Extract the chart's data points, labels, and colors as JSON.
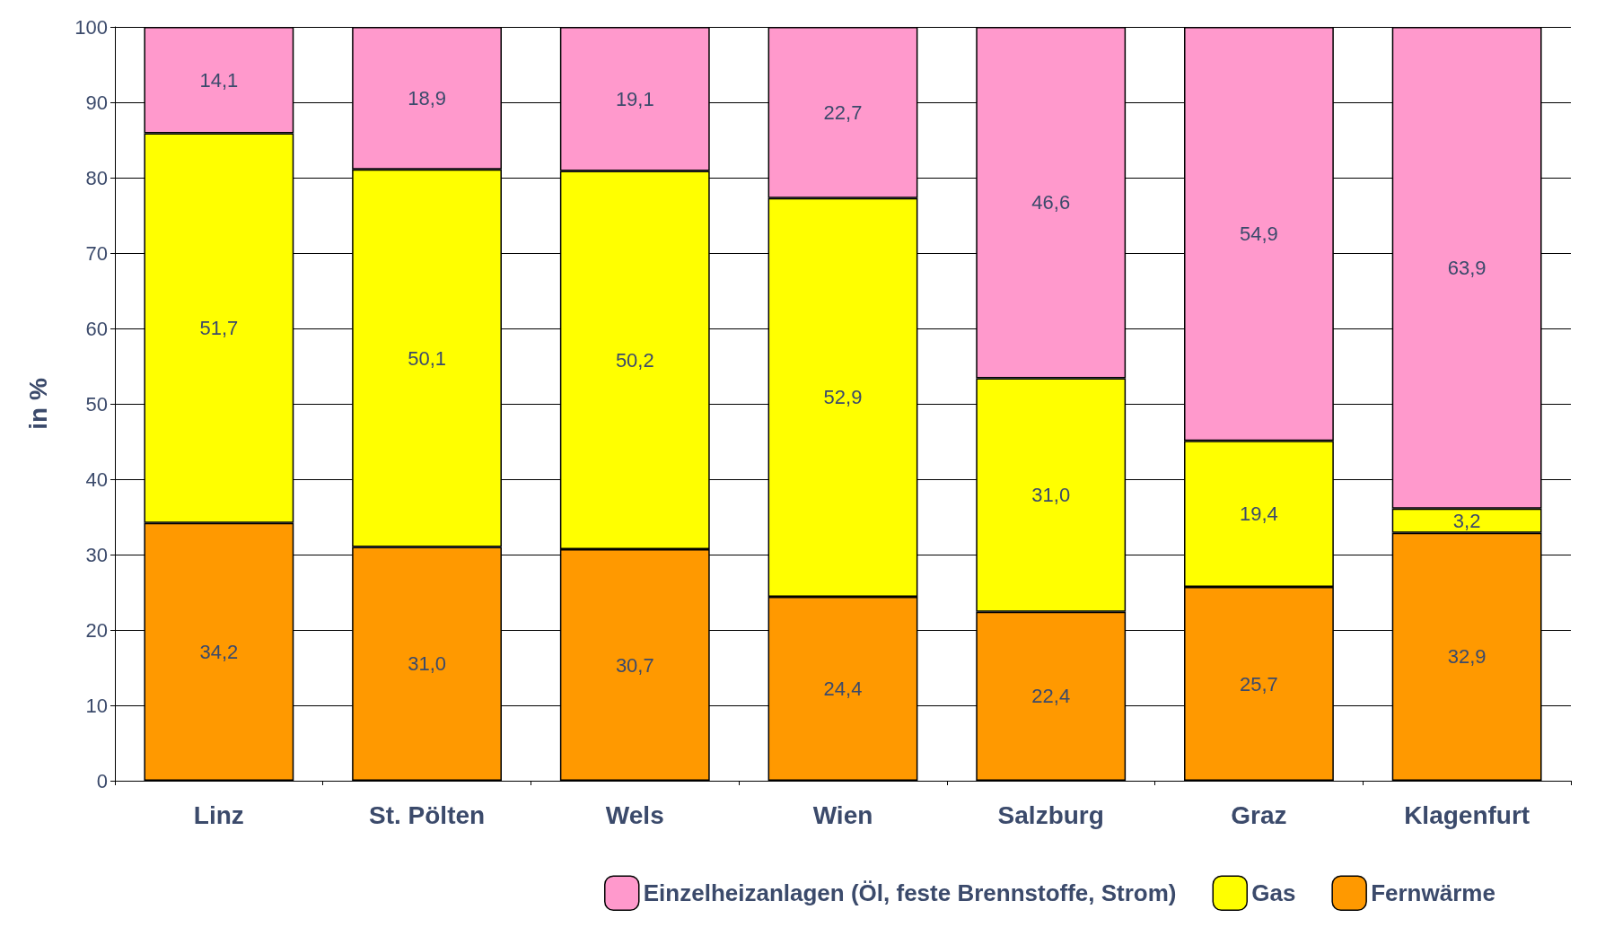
{
  "chart_data": {
    "type": "bar",
    "stacked": true,
    "ylabel": "in %",
    "categories": [
      "Linz",
      "St. Pölten",
      "Wels",
      "Wien",
      "Salzburg",
      "Graz",
      "Klagenfurt"
    ],
    "series": [
      {
        "name": "Fernwärme",
        "color": "#ff9900",
        "values": [
          34.2,
          31.0,
          30.7,
          24.4,
          22.4,
          25.7,
          32.9
        ],
        "value_labels": [
          "34,2",
          "31,0",
          "30,7",
          "24,4",
          "22,4",
          "25,7",
          "32,9"
        ]
      },
      {
        "name": "Gas",
        "color": "#ffff00",
        "values": [
          51.7,
          50.1,
          50.2,
          52.9,
          31.0,
          19.4,
          3.2
        ],
        "value_labels": [
          "51,7",
          "50,1",
          "50,2",
          "52,9",
          "31,0",
          "19,4",
          "3,2"
        ]
      },
      {
        "name": "Einzelheizanlagen (Öl, feste Brennstoffe, Strom)",
        "color": "#ff99cc",
        "values": [
          14.1,
          18.9,
          19.1,
          22.7,
          46.6,
          54.9,
          63.9
        ],
        "value_labels": [
          "14,1",
          "18,9",
          "19,1",
          "22,7",
          "46,6",
          "54,9",
          "63,9"
        ]
      }
    ],
    "ylim": [
      0,
      100
    ],
    "yticks": [
      0,
      10,
      20,
      30,
      40,
      50,
      60,
      70,
      80,
      90,
      100
    ],
    "grid": "y",
    "legend": "bottom"
  }
}
